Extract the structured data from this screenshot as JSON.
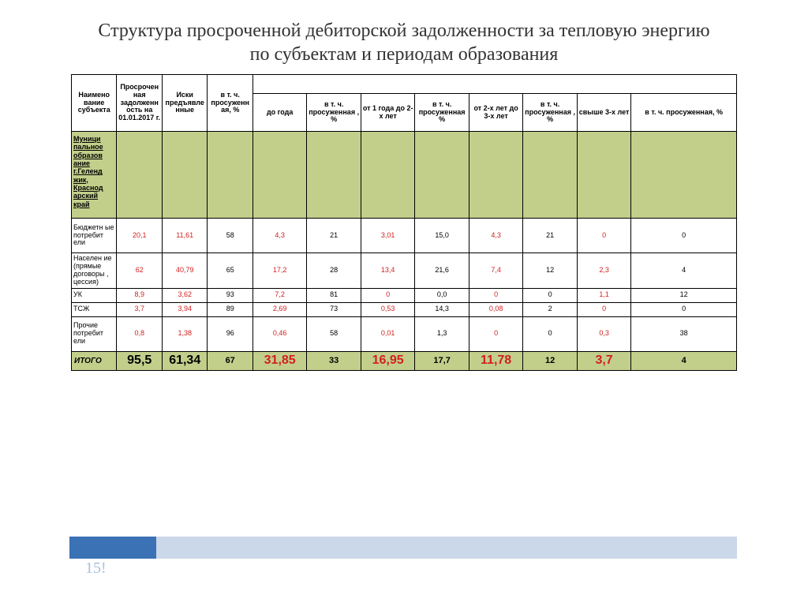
{
  "title": "Структура просроченной дебиторской задолженности за тепловую энергию по субъектам и периодам образования",
  "columns": {
    "c0": "Наимено\nвание\nсубъекта",
    "c1": "Просрочен\nная\nзадолженн\nость на\n01.01.2017\nг.",
    "c2": "Иски\nпредъявле\nнные",
    "c3": "в т. ч.\nпросуженн\nая, %",
    "c4": "до года",
    "c5": "в т. ч.\nпросуженная\n, %",
    "c6": "от 1 года до\n2-х лет",
    "c7": "в т. ч.\nпросуженная\n%",
    "c8": "от 2-х лет до\n3-х лет",
    "c9": "в т. ч.\nпросуженная\n, %",
    "c10": "свыше 3-х\nлет",
    "c11": "в т. ч. просуженная, %"
  },
  "subject_header": "Муници\nпальное\nобразов\nание\nг.Геленд\nжик,\nКраснод\nарский\nкрай",
  "rows": [
    {
      "label": "Бюджетн\nые\nпотребит\nели",
      "tall": true,
      "cells": [
        {
          "v": "20,1",
          "red": true
        },
        {
          "v": "11,61",
          "red": true
        },
        {
          "v": "58"
        },
        {
          "v": "4,3",
          "red": true
        },
        {
          "v": "21"
        },
        {
          "v": "3,01",
          "red": true
        },
        {
          "v": "15,0"
        },
        {
          "v": "4,3",
          "red": true
        },
        {
          "v": "21"
        },
        {
          "v": "0",
          "red": true
        },
        {
          "v": "0"
        }
      ]
    },
    {
      "label": "Населен\nие\n(прямые\nдоговоры\n, цессия)",
      "tall": true,
      "cells": [
        {
          "v": "62",
          "red": true
        },
        {
          "v": "40,79",
          "red": true
        },
        {
          "v": "65"
        },
        {
          "v": "17,2",
          "red": true
        },
        {
          "v": "28"
        },
        {
          "v": "13,4",
          "red": true
        },
        {
          "v": "21,6"
        },
        {
          "v": "7,4",
          "red": true
        },
        {
          "v": "12"
        },
        {
          "v": "2,3",
          "red": true
        },
        {
          "v": "4"
        }
      ]
    },
    {
      "label": "УК",
      "tall": false,
      "cells": [
        {
          "v": "8,9",
          "red": true
        },
        {
          "v": "3,62",
          "red": true
        },
        {
          "v": "93"
        },
        {
          "v": "7,2",
          "red": true
        },
        {
          "v": "81"
        },
        {
          "v": "0",
          "red": true
        },
        {
          "v": "0,0"
        },
        {
          "v": "0",
          "red": true
        },
        {
          "v": "0"
        },
        {
          "v": "1,1",
          "red": true
        },
        {
          "v": "12"
        }
      ]
    },
    {
      "label": "ТСЖ",
      "tall": false,
      "cells": [
        {
          "v": "3,7",
          "red": true
        },
        {
          "v": "3,94",
          "red": true
        },
        {
          "v": "89"
        },
        {
          "v": "2,69",
          "red": true
        },
        {
          "v": "73"
        },
        {
          "v": "0,53",
          "red": true
        },
        {
          "v": "14,3"
        },
        {
          "v": "0,08",
          "red": true
        },
        {
          "v": "2"
        },
        {
          "v": "0",
          "red": true
        },
        {
          "v": "0"
        }
      ]
    },
    {
      "label": "Прочие\nпотребит\nели",
      "tall": true,
      "cells": [
        {
          "v": "0,8",
          "red": true
        },
        {
          "v": "1,38",
          "red": true
        },
        {
          "v": "96"
        },
        {
          "v": "0,46",
          "red": true
        },
        {
          "v": "58"
        },
        {
          "v": "0,01",
          "red": true
        },
        {
          "v": "1,3"
        },
        {
          "v": "0",
          "red": true
        },
        {
          "v": "0"
        },
        {
          "v": "0,3",
          "red": true
        },
        {
          "v": "38"
        }
      ]
    }
  ],
  "total": {
    "label": "ИТОГО",
    "cells": [
      {
        "v": "95,5",
        "cls": "total-big"
      },
      {
        "v": "61,34",
        "cls": "total-big"
      },
      {
        "v": "67",
        "cls": "total-med"
      },
      {
        "v": "31,85",
        "cls": "total-red"
      },
      {
        "v": "33",
        "cls": "total-med"
      },
      {
        "v": "16,95",
        "cls": "total-red"
      },
      {
        "v": "17,7",
        "cls": "total-med"
      },
      {
        "v": "11,78",
        "cls": "total-red"
      },
      {
        "v": "12",
        "cls": "total-med"
      },
      {
        "v": "3,7",
        "cls": "total-red"
      },
      {
        "v": "4",
        "cls": "total-med"
      }
    ]
  },
  "page_number": "15!",
  "colors": {
    "olive": "#c2cf8b",
    "red": "#d32020",
    "footer_dark": "#3a72b5",
    "footer_light": "#cbd8e9",
    "page_num": "#a8c0dc"
  }
}
